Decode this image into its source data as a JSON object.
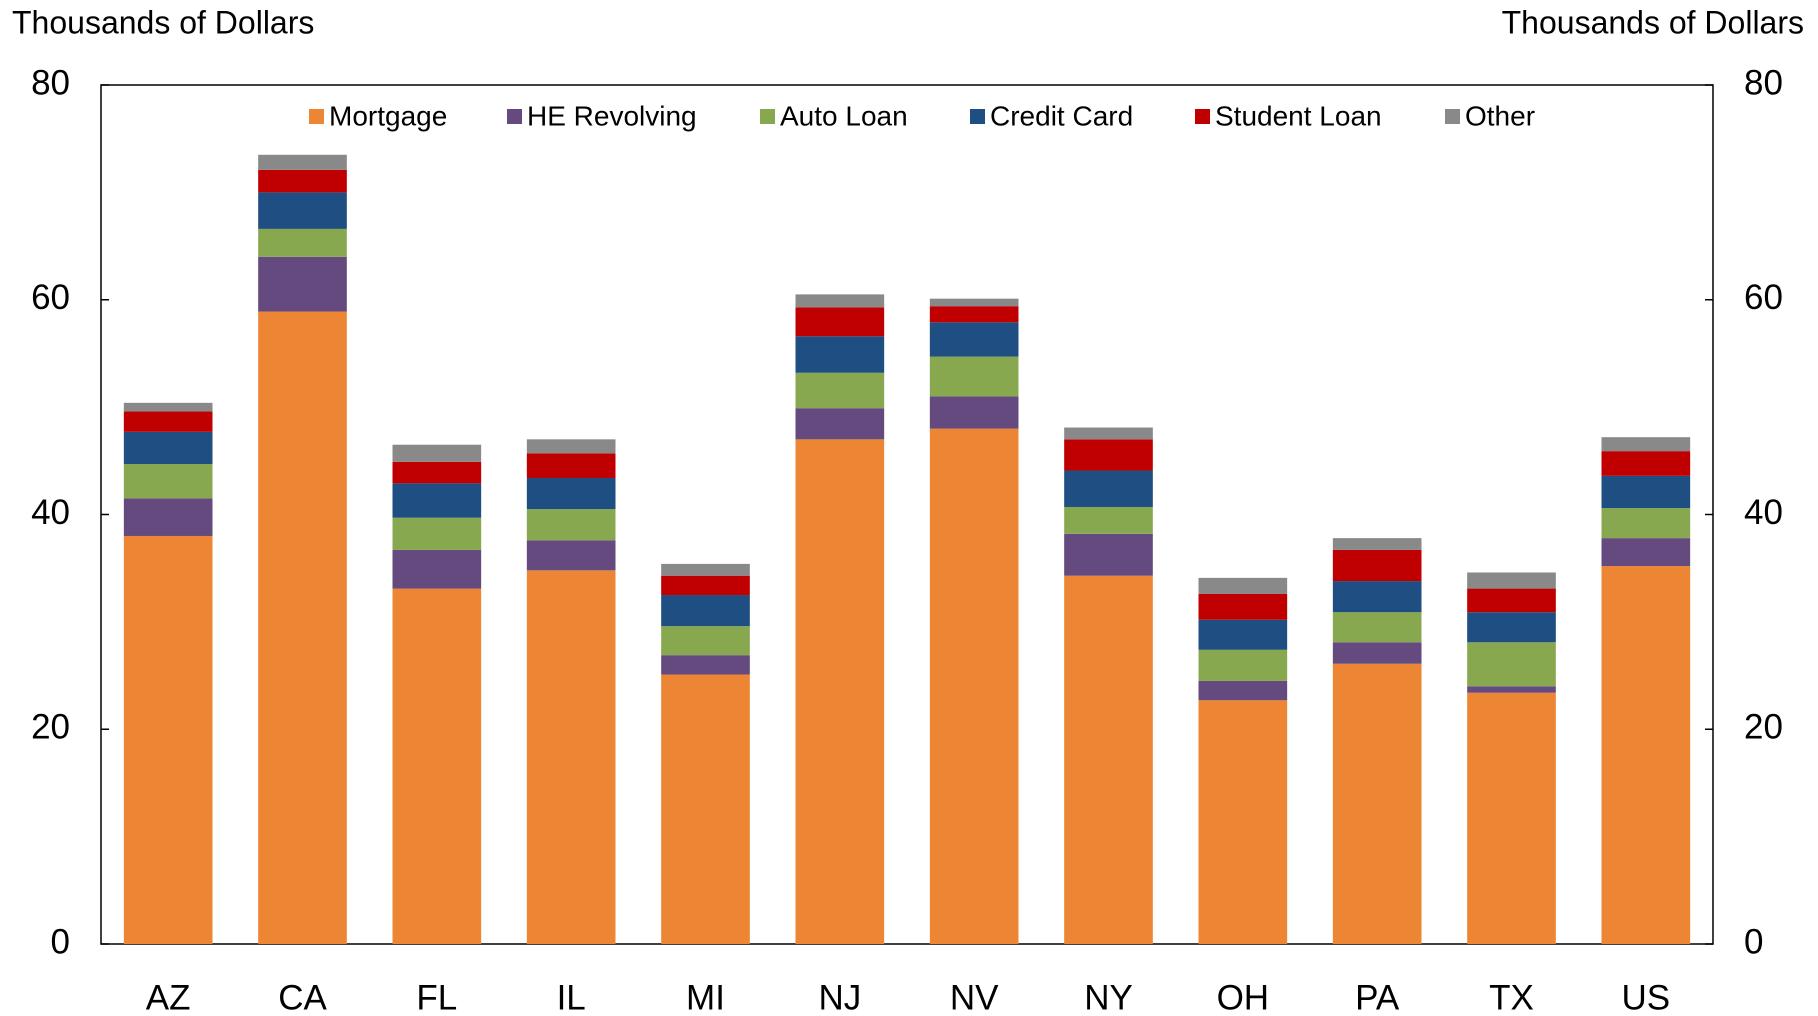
{
  "chart_data": {
    "type": "stacked_bar",
    "y_label": "Thousands of Dollars",
    "y2_label": "Thousands of Dollars",
    "categories": [
      "AZ",
      "CA",
      "FL",
      "IL",
      "MI",
      "NJ",
      "NV",
      "NY",
      "OH",
      "PA",
      "TX",
      "US"
    ],
    "series": [
      {
        "name": "Mortgage",
        "color": "#ed8634",
        "values": [
          38.0,
          58.9,
          33.1,
          34.8,
          25.1,
          47.0,
          48.0,
          34.3,
          22.7,
          26.1,
          23.4,
          35.2
        ]
      },
      {
        "name": "HE Revolving",
        "color": "#654a80",
        "values": [
          3.5,
          5.1,
          3.6,
          2.8,
          1.8,
          2.9,
          3.0,
          3.9,
          1.8,
          2.0,
          0.6,
          2.6
        ]
      },
      {
        "name": "Auto Loan",
        "color": "#88a84f",
        "values": [
          3.2,
          2.6,
          3.0,
          2.9,
          2.7,
          3.3,
          3.7,
          2.5,
          2.9,
          2.8,
          4.1,
          2.8
        ]
      },
      {
        "name": "Credit Card",
        "color": "#1f4e82",
        "values": [
          3.0,
          3.4,
          3.2,
          2.9,
          2.9,
          3.4,
          3.2,
          3.4,
          2.8,
          2.9,
          2.8,
          3.0
        ]
      },
      {
        "name": "Student Loan",
        "color": "#c00000",
        "values": [
          1.9,
          2.1,
          2.0,
          2.3,
          1.8,
          2.7,
          1.5,
          2.9,
          2.4,
          2.9,
          2.2,
          2.3
        ]
      },
      {
        "name": "Other",
        "color": "#898989",
        "values": [
          0.8,
          1.4,
          1.6,
          1.3,
          1.1,
          1.2,
          0.7,
          1.1,
          1.5,
          1.1,
          1.5,
          1.3
        ]
      }
    ],
    "ylim": [
      0,
      80
    ],
    "yticks": [
      0,
      20,
      40,
      60,
      80
    ],
    "y2lim": [
      0,
      80
    ],
    "y2ticks": [
      0,
      20,
      40,
      60,
      80
    ],
    "grid": false
  }
}
